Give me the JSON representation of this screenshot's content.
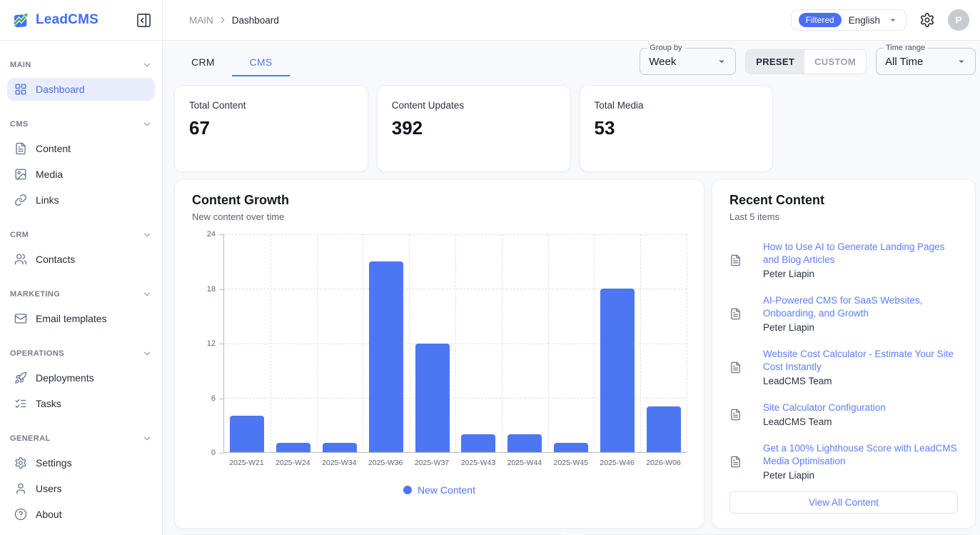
{
  "app": {
    "name": "LeadCMS"
  },
  "header": {
    "breadcrumb": {
      "root": "MAIN",
      "current": "Dashboard"
    },
    "filtered_badge": "Filtered",
    "language": "English",
    "avatar_initial": "P"
  },
  "sidebar": {
    "sections": [
      {
        "label": "MAIN",
        "items": [
          {
            "label": "Dashboard",
            "icon": "dashboard-grid-icon",
            "active": true
          }
        ]
      },
      {
        "label": "CMS",
        "items": [
          {
            "label": "Content",
            "icon": "document-icon"
          },
          {
            "label": "Media",
            "icon": "image-icon"
          },
          {
            "label": "Links",
            "icon": "link-icon"
          }
        ]
      },
      {
        "label": "CRM",
        "items": [
          {
            "label": "Contacts",
            "icon": "people-icon"
          }
        ]
      },
      {
        "label": "MARKETING",
        "items": [
          {
            "label": "Email templates",
            "icon": "mail-icon"
          }
        ]
      },
      {
        "label": "OPERATIONS",
        "items": [
          {
            "label": "Deployments",
            "icon": "rocket-icon"
          },
          {
            "label": "Tasks",
            "icon": "checklist-icon"
          }
        ]
      },
      {
        "label": "GENERAL",
        "items": [
          {
            "label": "Settings",
            "icon": "gear-icon"
          },
          {
            "label": "Users",
            "icon": "user-icon"
          },
          {
            "label": "About",
            "icon": "question-circle-icon"
          }
        ]
      }
    ]
  },
  "toolbar": {
    "tabs": [
      {
        "label": "CRM",
        "active": false
      },
      {
        "label": "CMS",
        "active": true
      }
    ],
    "group_by": {
      "label": "Group by",
      "value": "Week"
    },
    "range_mode": {
      "preset": "PRESET",
      "custom": "CUSTOM",
      "selected": "PRESET"
    },
    "time_range": {
      "label": "Time range",
      "value": "All Time"
    }
  },
  "stats": [
    {
      "label": "Total Content",
      "value": "67"
    },
    {
      "label": "Content Updates",
      "value": "392"
    },
    {
      "label": "Total Media",
      "value": "53"
    }
  ],
  "chart_card": {
    "title": "Content Growth",
    "subtitle": "New content over time"
  },
  "chart_data": {
    "type": "bar",
    "title": "Content Growth",
    "subtitle": "New content over time",
    "categories": [
      "2025-W21",
      "2025-W24",
      "2025-W34",
      "2025-W36",
      "2025-W37",
      "2025-W43",
      "2025-W44",
      "2025-W45",
      "2025-W46",
      "2026-W06"
    ],
    "values": [
      4,
      1,
      1,
      21,
      12,
      2,
      2,
      1,
      18,
      5
    ],
    "series_name": "New Content",
    "legend": {
      "label": "New Content",
      "position": "bottom-center"
    },
    "xlabel": "",
    "ylabel": "",
    "ylim": [
      0,
      24
    ],
    "yticks": [
      0,
      6,
      12,
      18,
      24
    ],
    "grid": "dashed"
  },
  "recent": {
    "title": "Recent Content",
    "subtitle": "Last 5 items",
    "items": [
      {
        "title": "How to Use AI to Generate Landing Pages and Blog Articles",
        "author": "Peter Liapin"
      },
      {
        "title": "AI-Powered CMS for SaaS Websites, Onboarding, and Growth",
        "author": "Peter Liapin"
      },
      {
        "title": "Website Cost Calculator - Estimate Your Site Cost Instantly",
        "author": "LeadCMS Team"
      },
      {
        "title": "Site Calculator Configuration",
        "author": "LeadCMS Team"
      },
      {
        "title": "Get a 100% Lighthouse Score with LeadCMS Media Optimisation",
        "author": "Peter Liapin"
      }
    ],
    "view_all_label": "View All Content"
  },
  "colors": {
    "accent": "#4d77f2",
    "link": "#5b7ef6",
    "badge": "#4c6ef5",
    "active_nav_bg": "#e9edfb",
    "active_nav_text": "#4a6ee0",
    "page_bg": "#f8f9fd",
    "border": "#e9eaf0",
    "axis": "#b6bac3",
    "grid": "#dfe1e6"
  }
}
